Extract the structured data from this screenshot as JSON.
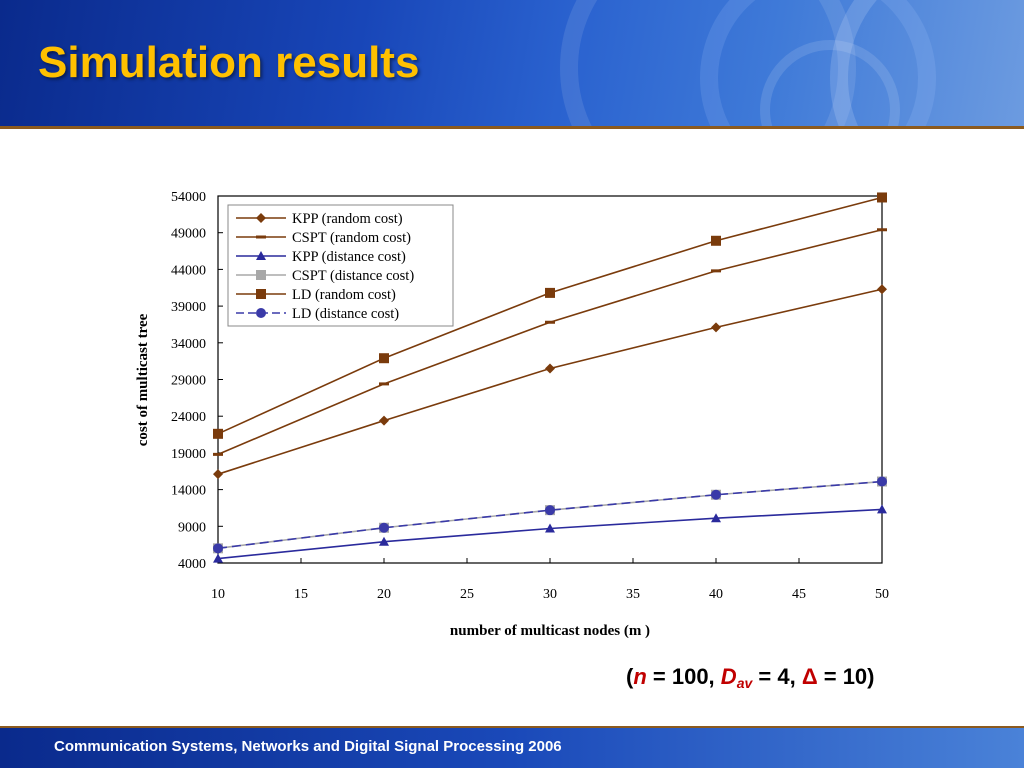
{
  "slide": {
    "title": "Simulation results",
    "footer": "Communication Systems, Networks and Digital Signal Processing 2006",
    "params": {
      "open": "(",
      "n_var": "n",
      "n_eq": " = 100, ",
      "d_var": "D",
      "d_sub": "av",
      "d_eq": " = 4, ",
      "delta": "Δ",
      "delta_eq": " = 10",
      "close": ")"
    }
  },
  "chart_data": {
    "type": "line",
    "title": "",
    "xlabel": "number of multicast nodes (m )",
    "ylabel": "cost of multicast tree",
    "x": [
      10,
      20,
      30,
      40,
      50
    ],
    "xlim": [
      10,
      50
    ],
    "ylim": [
      4000,
      54000
    ],
    "xticks": [
      "10",
      "15",
      "20",
      "25",
      "30",
      "35",
      "40",
      "45",
      "50"
    ],
    "yticks": [
      "4000",
      "9000",
      "14000",
      "19000",
      "24000",
      "29000",
      "34000",
      "39000",
      "44000",
      "49000",
      "54000"
    ],
    "grid": false,
    "legend_position": "top-left",
    "series": [
      {
        "name": "KPP (random cost)",
        "values": [
          16100,
          23400,
          30500,
          36100,
          41300
        ],
        "color": "#7a3b0c",
        "marker": "diamond",
        "dashed": false
      },
      {
        "name": "CSPT (random cost)",
        "values": [
          18800,
          28400,
          36800,
          43800,
          49400
        ],
        "color": "#7a3b0c",
        "marker": "dash",
        "dashed": false
      },
      {
        "name": "KPP (distance cost)",
        "values": [
          4600,
          6900,
          8700,
          10100,
          11300
        ],
        "color": "#2a2a9c",
        "marker": "triangle",
        "dashed": false
      },
      {
        "name": "CSPT (distance cost)",
        "values": [
          6000,
          8800,
          11200,
          13300,
          15100
        ],
        "color": "#a8a8a8",
        "marker": "square",
        "dashed": false
      },
      {
        "name": "LD (random cost)",
        "values": [
          21600,
          31900,
          40800,
          47900,
          53800
        ],
        "color": "#7a3b0c",
        "marker": "square",
        "dashed": false
      },
      {
        "name": "LD (distance cost)",
        "values": [
          6000,
          8800,
          11200,
          13300,
          15100
        ],
        "color": "#3a3aa8",
        "marker": "circle",
        "dashed": true
      }
    ]
  }
}
